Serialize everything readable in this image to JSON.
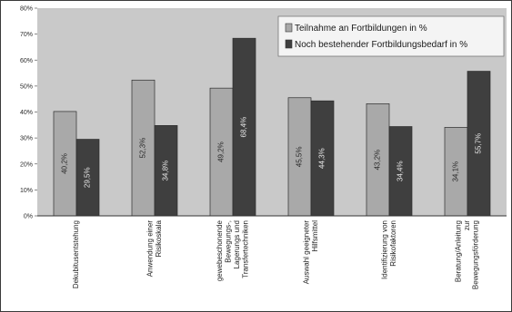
{
  "chart_data": {
    "type": "bar",
    "title": "",
    "xlabel": "",
    "ylabel": "",
    "ylim": [
      0,
      80
    ],
    "y_ticks": [
      "0%",
      "10%",
      "20%",
      "30%",
      "40%",
      "50%",
      "60%",
      "70%",
      "80%"
    ],
    "grid": false,
    "legend_position": "top-right",
    "categories": [
      [
        "Dekubitusentstehung"
      ],
      [
        "Anwendung einer",
        "Risikoskala"
      ],
      [
        "gewebeschonende",
        "Bewegungs-,",
        "Lagerungs und",
        "Transfertechniken"
      ],
      [
        "Auswahl geeigneter",
        "Hilfsmittel"
      ],
      [
        "Identifizierung von",
        "Risikofaktoren"
      ],
      [
        "Beratung/Anleitung",
        "zur",
        "Bewegungsförderung"
      ]
    ],
    "series": [
      {
        "name": "Teilnahme an Fortbildungen in %",
        "color": "#a9a9a9",
        "values": [
          40.2,
          52.3,
          49.2,
          45.5,
          43.2,
          34.1
        ],
        "labels": [
          "40,2%",
          "52,3%",
          "49,2%",
          "45,5%",
          "43,2%",
          "34,1%"
        ]
      },
      {
        "name": "Noch bestehender Fortbildungsbedarf in %",
        "color": "#3f3f3f",
        "values": [
          29.5,
          34.8,
          68.4,
          44.3,
          34.4,
          55.7
        ],
        "labels": [
          "29,5%",
          "34,8%",
          "68,4%",
          "44,3%",
          "34,4%",
          "55,7%"
        ]
      }
    ]
  }
}
